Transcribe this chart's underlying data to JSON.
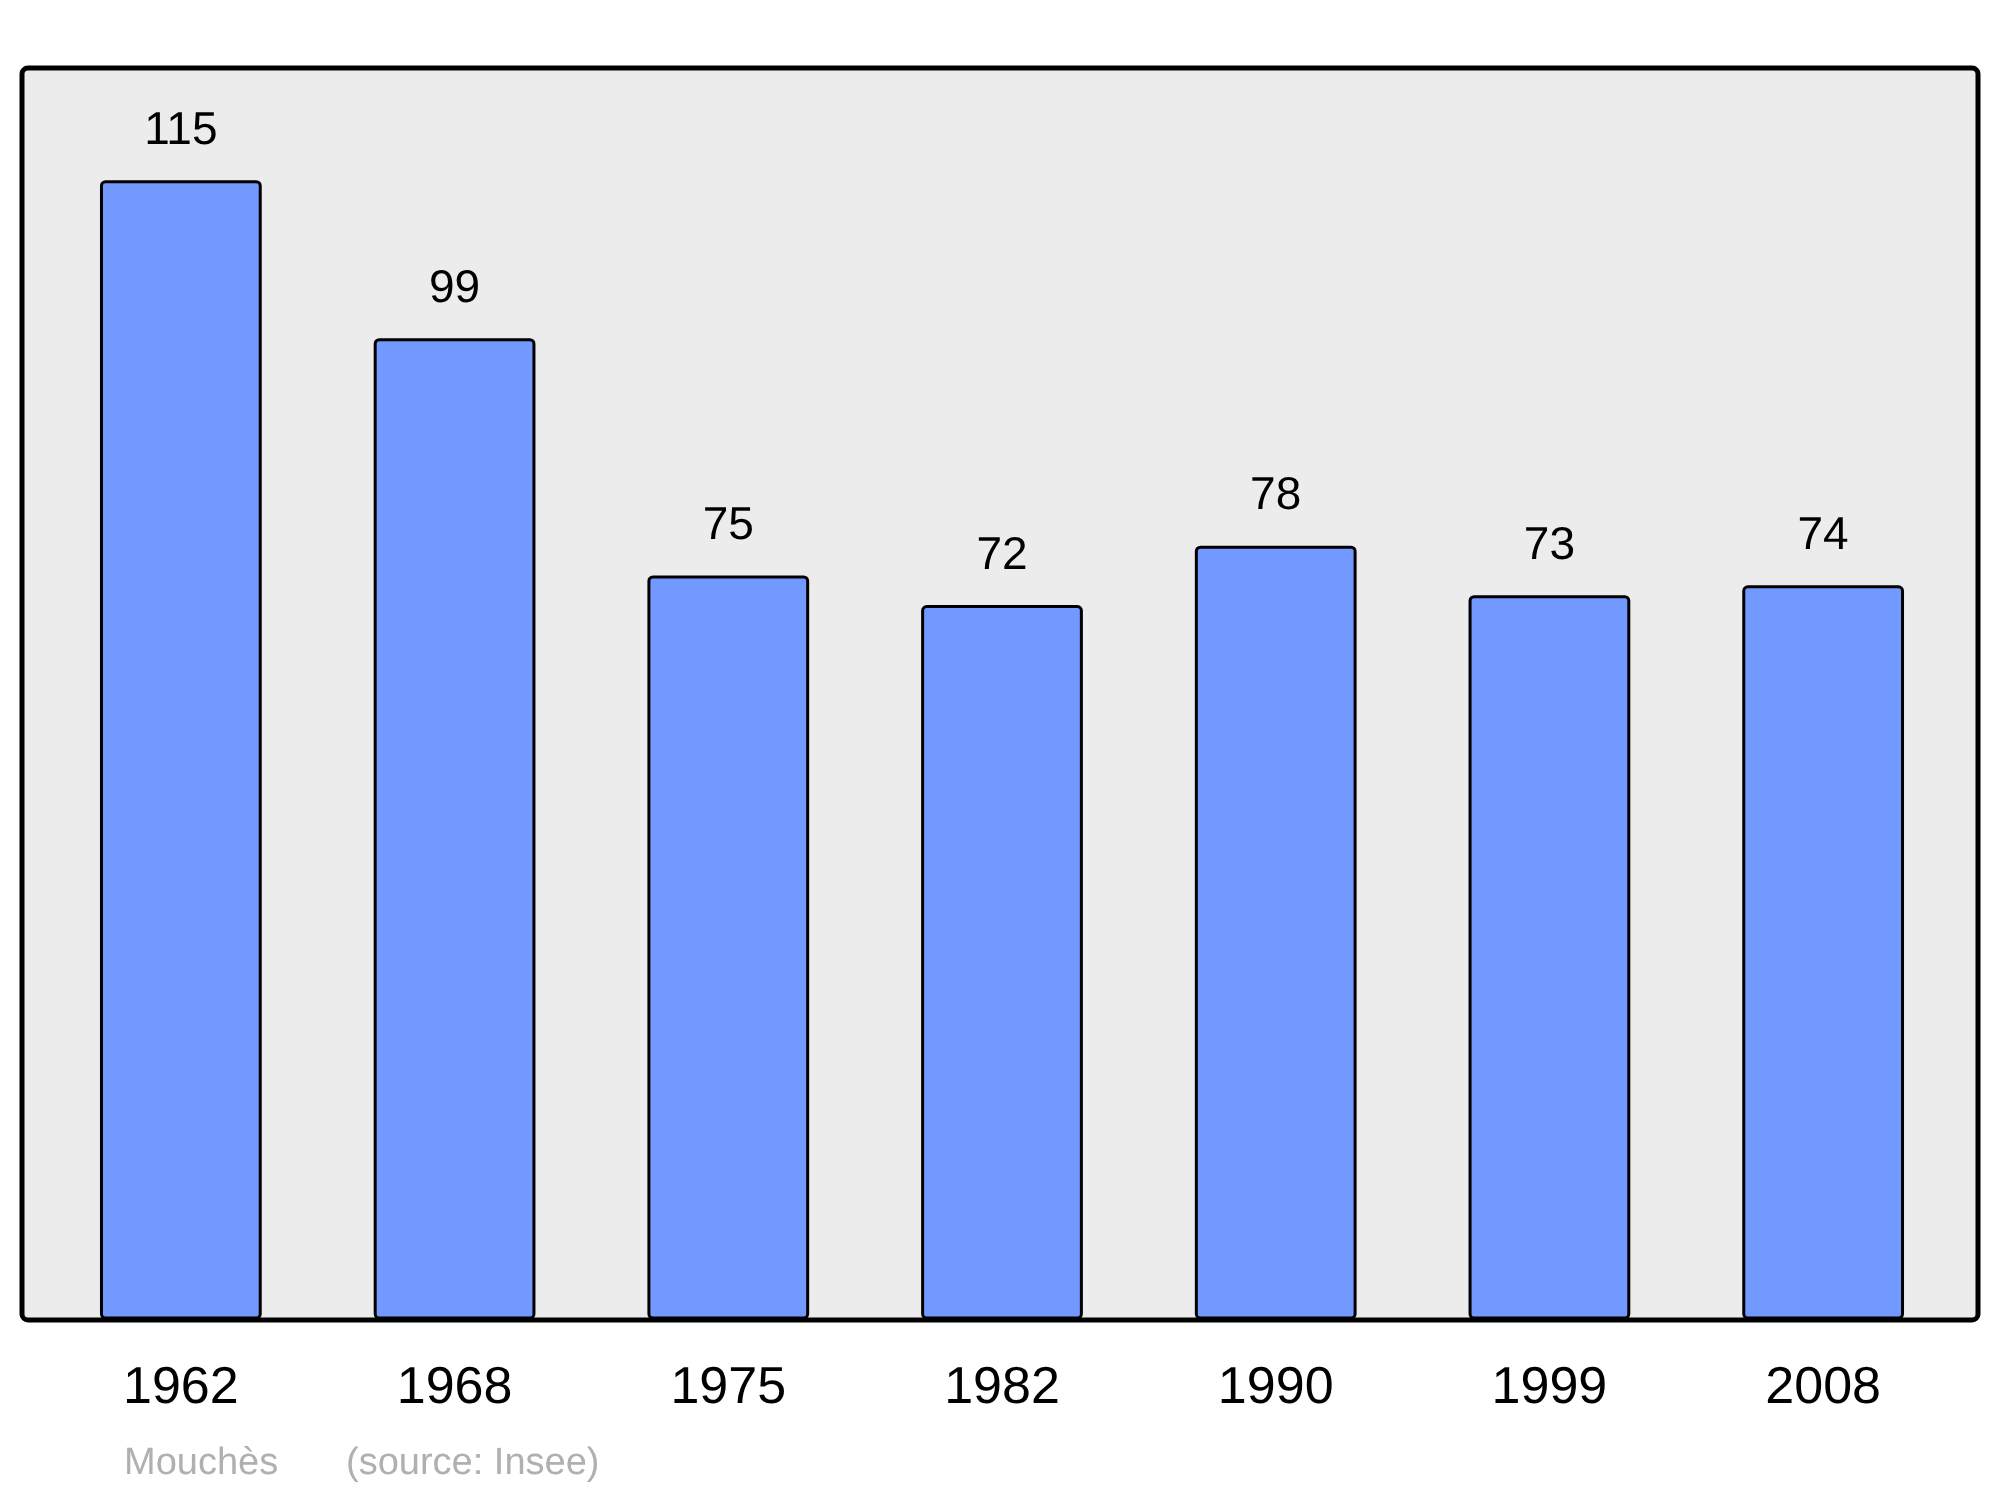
{
  "chart_data": {
    "type": "bar",
    "categories": [
      "1962",
      "1968",
      "1975",
      "1982",
      "1990",
      "1999",
      "2008"
    ],
    "values": [
      115,
      99,
      75,
      72,
      78,
      73,
      74
    ],
    "color": "#7299ff",
    "data_labels": true,
    "grid": false,
    "annotations": [
      "Mouchès",
      "(source: Insee)"
    ]
  }
}
